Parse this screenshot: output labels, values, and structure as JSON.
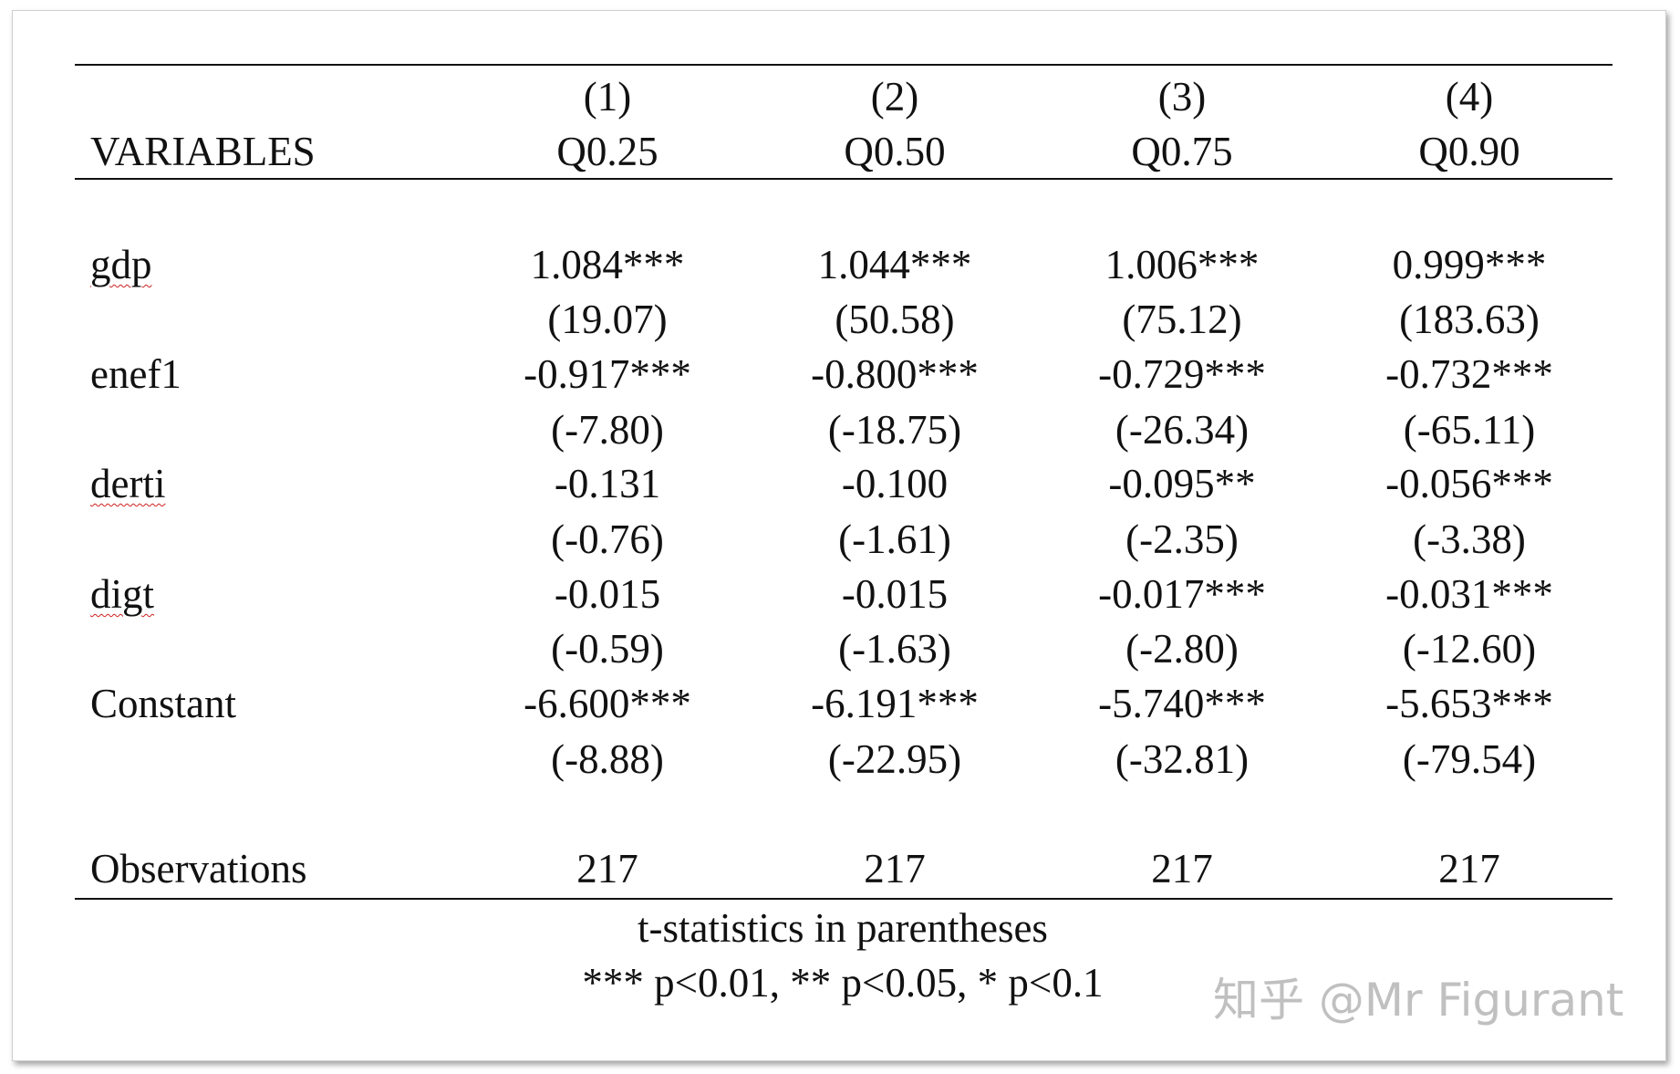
{
  "table": {
    "col_numbers": [
      "(1)",
      "(2)",
      "(3)",
      "(4)"
    ],
    "header_label": "VARIABLES",
    "col_names": [
      "Q0.25",
      "Q0.50",
      "Q0.75",
      "Q0.90"
    ],
    "rows": [
      {
        "name": "gdp",
        "coefs": [
          "1.084***",
          "1.044***",
          "1.006***",
          "0.999***"
        ],
        "tstats": [
          "(19.07)",
          "(50.58)",
          "(75.12)",
          "(183.63)"
        ]
      },
      {
        "name": "enef1",
        "coefs": [
          "-0.917***",
          "-0.800***",
          "-0.729***",
          "-0.732***"
        ],
        "tstats": [
          "(-7.80)",
          "(-18.75)",
          "(-26.34)",
          "(-65.11)"
        ]
      },
      {
        "name": "derti",
        "coefs": [
          "-0.131",
          "-0.100",
          "-0.095**",
          "-0.056***"
        ],
        "tstats": [
          "(-0.76)",
          "(-1.61)",
          "(-2.35)",
          "(-3.38)"
        ]
      },
      {
        "name": "digt",
        "coefs": [
          "-0.015",
          "-0.015",
          "-0.017***",
          "-0.031***"
        ],
        "tstats": [
          "(-0.59)",
          "(-1.63)",
          "(-2.80)",
          "(-12.60)"
        ]
      },
      {
        "name": "Constant",
        "coefs": [
          "-6.600***",
          "-6.191***",
          "-5.740***",
          "-5.653***"
        ],
        "tstats": [
          "(-8.88)",
          "(-22.95)",
          "(-32.81)",
          "(-79.54)"
        ]
      }
    ],
    "observations_label": "Observations",
    "observations": [
      "217",
      "217",
      "217",
      "217"
    ]
  },
  "notes": {
    "line1": "t-statistics in parentheses",
    "line2": "*** p<0.01, ** p<0.05, * p<0.1"
  },
  "watermark": "知乎 @Mr Figurant"
}
